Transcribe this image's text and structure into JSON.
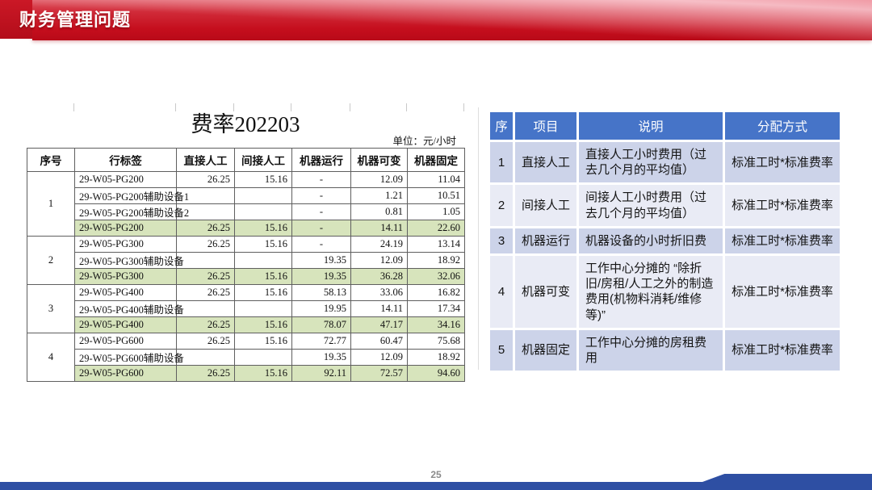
{
  "slide": {
    "title": "财务管理问题",
    "page_number": "25"
  },
  "left_table": {
    "title": "费率202203",
    "unit_label": "单位：元/小时",
    "columns": [
      "序号",
      "行标签",
      "直接人工",
      "间接人工",
      "机器运行",
      "机器可变",
      "机器固定"
    ],
    "groups": [
      {
        "seq": "1",
        "rows": [
          {
            "label": "29-W05-PG200",
            "direct": "26.25",
            "indirect": "15.16",
            "run": "-",
            "variable": "12.09",
            "fixed": "11.04",
            "highlight": false
          },
          {
            "label": "29-W05-PG200辅助设备1",
            "direct": "",
            "indirect": "",
            "run": "-",
            "variable": "1.21",
            "fixed": "10.51",
            "highlight": false
          },
          {
            "label": "29-W05-PG200辅助设备2",
            "direct": "",
            "indirect": "",
            "run": "-",
            "variable": "0.81",
            "fixed": "1.05",
            "highlight": false
          },
          {
            "label": "29-W05-PG200",
            "direct": "26.25",
            "indirect": "15.16",
            "run": "-",
            "variable": "14.11",
            "fixed": "22.60",
            "highlight": true
          }
        ]
      },
      {
        "seq": "2",
        "rows": [
          {
            "label": "29-W05-PG300",
            "direct": "26.25",
            "indirect": "15.16",
            "run": "-",
            "variable": "24.19",
            "fixed": "13.14",
            "highlight": false
          },
          {
            "label": "29-W05-PG300辅助设备",
            "direct": "",
            "indirect": "",
            "run": "19.35",
            "variable": "12.09",
            "fixed": "18.92",
            "highlight": false
          },
          {
            "label": "29-W05-PG300",
            "direct": "26.25",
            "indirect": "15.16",
            "run": "19.35",
            "variable": "36.28",
            "fixed": "32.06",
            "highlight": true
          }
        ]
      },
      {
        "seq": "3",
        "rows": [
          {
            "label": "29-W05-PG400",
            "direct": "26.25",
            "indirect": "15.16",
            "run": "58.13",
            "variable": "33.06",
            "fixed": "16.82",
            "highlight": false
          },
          {
            "label": "29-W05-PG400辅助设备",
            "direct": "",
            "indirect": "",
            "run": "19.95",
            "variable": "14.11",
            "fixed": "17.34",
            "highlight": false
          },
          {
            "label": "29-W05-PG400",
            "direct": "26.25",
            "indirect": "15.16",
            "run": "78.07",
            "variable": "47.17",
            "fixed": "34.16",
            "highlight": true
          }
        ]
      },
      {
        "seq": "4",
        "rows": [
          {
            "label": "29-W05-PG600",
            "direct": "26.25",
            "indirect": "15.16",
            "run": "72.77",
            "variable": "60.47",
            "fixed": "75.68",
            "highlight": false
          },
          {
            "label": "29-W05-PG600辅助设备",
            "direct": "",
            "indirect": "",
            "run": "19.35",
            "variable": "12.09",
            "fixed": "18.92",
            "highlight": false
          },
          {
            "label": "29-W05-PG600",
            "direct": "26.25",
            "indirect": "15.16",
            "run": "92.11",
            "variable": "72.57",
            "fixed": "94.60",
            "highlight": true
          }
        ]
      }
    ]
  },
  "right_table": {
    "columns": [
      "序",
      "项目",
      "说明",
      "分配方式"
    ],
    "rows": [
      {
        "seq": "1",
        "item": "直接人工",
        "desc": "直接人工小时费用（过去几个月的平均值）",
        "method": "标准工时*标准费率"
      },
      {
        "seq": "2",
        "item": "间接人工",
        "desc": "间接人工小时费用（过去几个月的平均值）",
        "method": "标准工时*标准费率"
      },
      {
        "seq": "3",
        "item": "机器运行",
        "desc": "机器设备的小时折旧费",
        "method": "标准工时*标准费率"
      },
      {
        "seq": "4",
        "item": "机器可变",
        "desc": "工作中心分摊的 “除折旧/房租/人工之外的制造费用(机物料消耗/维修等)”",
        "method": "标准工时*标准费率"
      },
      {
        "seq": "5",
        "item": "机器固定",
        "desc": "工作中心分摊的房租费用",
        "method": "标准工时*标准费率"
      }
    ]
  },
  "colors": {
    "header_red_square_top": "#cb1826",
    "header_red_square_bottom": "#b30d1a",
    "table_header_blue": "#4674c8",
    "band_dark": "#ccd3e9",
    "band_light": "#e9ebf5",
    "highlight_green": "#d7e4bc",
    "footer_blue": "#2e4fa3"
  }
}
